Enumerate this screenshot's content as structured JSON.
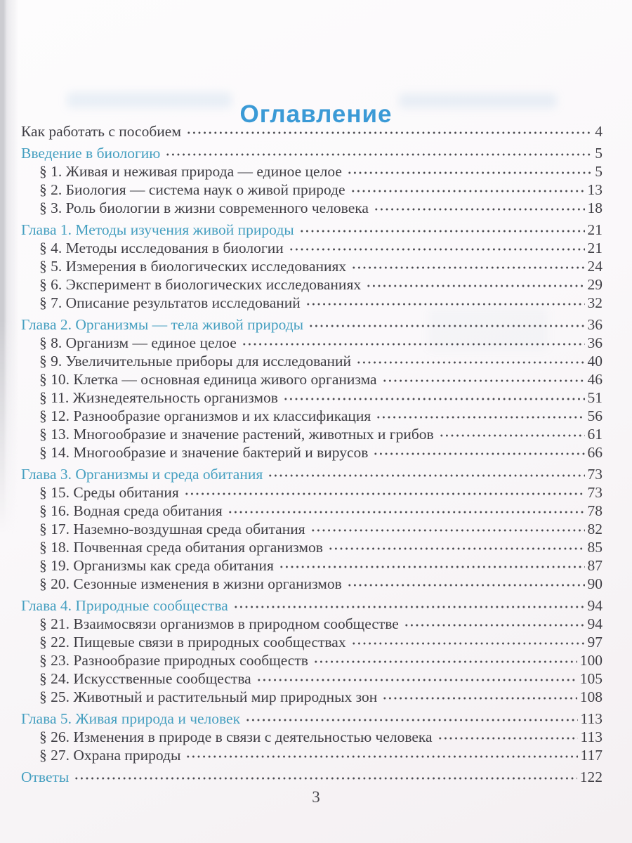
{
  "page": {
    "title": "Оглавление",
    "footer_page_number": "3",
    "colors": {
      "title_blue": "#3b9ad6",
      "chapter_blue": "#459fc0",
      "text": "#3f3e44",
      "dots": "#47474c",
      "paper": "#faf8fa"
    },
    "entries": [
      {
        "label": "Как работать с пособием",
        "page": "4",
        "type": "top"
      },
      {
        "label": "Введение в биологию",
        "page": "5",
        "type": "chapter"
      },
      {
        "label": "§ 1. Живая и неживая природа — единое целое",
        "page": "5",
        "type": "section"
      },
      {
        "label": "§ 2. Биология — система наук о живой природе",
        "page": "13",
        "type": "section"
      },
      {
        "label": "§ 3. Роль биологии в жизни современного человека",
        "page": "18",
        "type": "section"
      },
      {
        "label": "Глава 1. Методы изучения живой природы",
        "page": "21",
        "type": "chapter"
      },
      {
        "label": "§ 4. Методы исследования в биологии",
        "page": "21",
        "type": "section"
      },
      {
        "label": "§ 5. Измерения в биологических исследованиях",
        "page": "24",
        "type": "section"
      },
      {
        "label": "§ 6. Эксперимент в биологических исследованиях",
        "page": "29",
        "type": "section"
      },
      {
        "label": "§ 7. Описание результатов исследований",
        "page": "32",
        "type": "section"
      },
      {
        "label": "Глава 2. Организмы — тела живой природы",
        "page": "36",
        "type": "chapter"
      },
      {
        "label": "§ 8. Организм — единое целое",
        "page": "36",
        "type": "section"
      },
      {
        "label": "§ 9. Увеличительные приборы для исследований",
        "page": "40",
        "type": "section"
      },
      {
        "label": "§ 10. Клетка — основная единица живого организма",
        "page": "46",
        "type": "section"
      },
      {
        "label": "§ 11. Жизнедеятельность организмов",
        "page": "51",
        "type": "section"
      },
      {
        "label": "§ 12. Разнообразие организмов и их классификация",
        "page": "56",
        "type": "section"
      },
      {
        "label": "§ 13. Многообразие и значение растений, животных и грибов",
        "page": "61",
        "type": "section"
      },
      {
        "label": "§ 14. Многообразие и значение бактерий и вирусов",
        "page": "66",
        "type": "section"
      },
      {
        "label": "Глава 3. Организмы и среда обитания",
        "page": "73",
        "type": "chapter"
      },
      {
        "label": "§ 15. Среды обитания",
        "page": "73",
        "type": "section"
      },
      {
        "label": "§ 16. Водная среда обитания",
        "page": "78",
        "type": "section"
      },
      {
        "label": "§ 17. Наземно-воздушная среда обитания",
        "page": "82",
        "type": "section"
      },
      {
        "label": "§ 18. Почвенная среда обитания организмов",
        "page": "85",
        "type": "section"
      },
      {
        "label": "§ 19. Организмы как среда обитания",
        "page": "87",
        "type": "section"
      },
      {
        "label": "§ 20. Сезонные изменения в жизни организмов",
        "page": "90",
        "type": "section"
      },
      {
        "label": "Глава 4. Природные сообщества",
        "page": "94",
        "type": "chapter"
      },
      {
        "label": "§ 21. Взаимосвязи организмов в природном сообществе",
        "page": "94",
        "type": "section"
      },
      {
        "label": "§ 22. Пищевые связи в природных сообществах",
        "page": "97",
        "type": "section"
      },
      {
        "label": "§ 23. Разнообразие природных сообществ",
        "page": "100",
        "type": "section"
      },
      {
        "label": "§ 24. Искусственные сообщества",
        "page": "105",
        "type": "section"
      },
      {
        "label": "§ 25. Животный и растительный мир природных зон",
        "page": "108",
        "type": "section"
      },
      {
        "label": "Глава 5. Живая природа и человек",
        "page": "113",
        "type": "chapter"
      },
      {
        "label": "§ 26. Изменения в природе в связи с деятельностью человека",
        "page": "113",
        "type": "section"
      },
      {
        "label": "§ 27. Охрана природы",
        "page": "117",
        "type": "section"
      },
      {
        "label": "Ответы",
        "page": "122",
        "type": "chapter"
      }
    ]
  }
}
